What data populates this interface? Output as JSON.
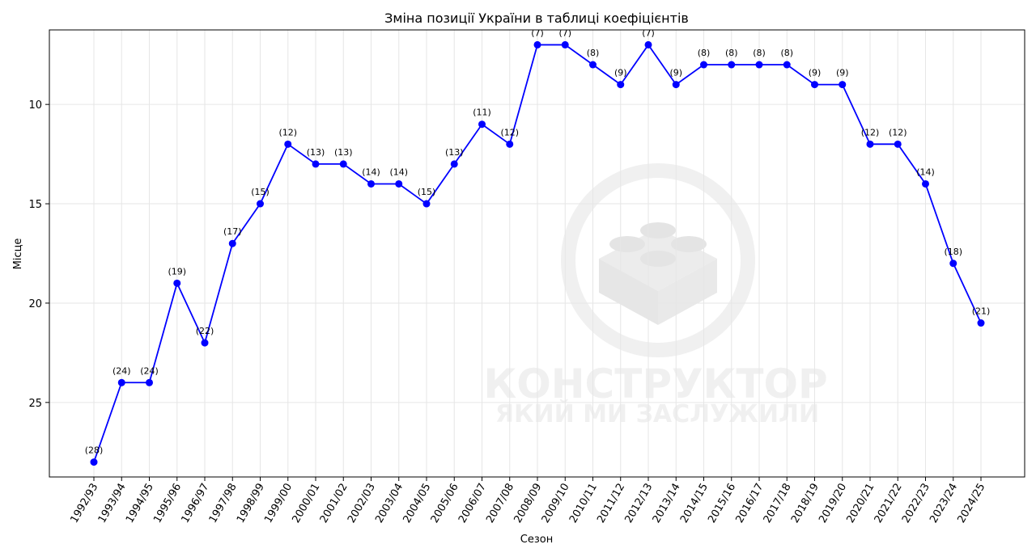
{
  "chart_data": {
    "type": "line",
    "title": "Зміна позиції України в таблиці коефіцієнтів",
    "xlabel": "Сезон",
    "ylabel": "Місце",
    "y_inverted": true,
    "ylim": [
      28.75,
      6.25
    ],
    "yticks": [
      10,
      15,
      20,
      25
    ],
    "grid": true,
    "line_color": "#0000ff",
    "marker_color": "#0000ff",
    "categories": [
      "1992/93",
      "1993/94",
      "1994/95",
      "1995/96",
      "1996/97",
      "1997/98",
      "1998/99",
      "1999/00",
      "2000/01",
      "2001/02",
      "2002/03",
      "2003/04",
      "2004/05",
      "2005/06",
      "2006/07",
      "2007/08",
      "2008/09",
      "2009/10",
      "2010/11",
      "2011/12",
      "2012/13",
      "2013/14",
      "2014/15",
      "2015/16",
      "2016/17",
      "2017/18",
      "2018/19",
      "2019/20",
      "2020/21",
      "2021/22",
      "2022/23",
      "2023/24",
      "2024/25"
    ],
    "values": [
      28,
      24,
      24,
      19,
      22,
      17,
      15,
      12,
      13,
      13,
      14,
      14,
      15,
      13,
      11,
      12,
      7,
      7,
      8,
      9,
      7,
      9,
      8,
      8,
      8,
      8,
      9,
      9,
      12,
      12,
      14,
      18,
      21
    ],
    "data_labels": [
      "(28)",
      "(24)",
      "(24)",
      "(19)",
      "(22)",
      "(17)",
      "(15)",
      "(12)",
      "(13)",
      "(13)",
      "(14)",
      "(14)",
      "(15)",
      "(13)",
      "(11)",
      "(12)",
      "(7)",
      "(7)",
      "(8)",
      "(9)",
      "(7)",
      "(9)",
      "(8)",
      "(8)",
      "(8)",
      "(8)",
      "(9)",
      "(9)",
      "(12)",
      "(12)",
      "(14)",
      "(18)",
      "(21)"
    ]
  },
  "watermark": {
    "line1": "КОНСТРУКТОР",
    "line2": "ЯКИЙ МИ ЗАСЛУЖИЛИ",
    "icon": "lego-brick-ball-icon"
  }
}
